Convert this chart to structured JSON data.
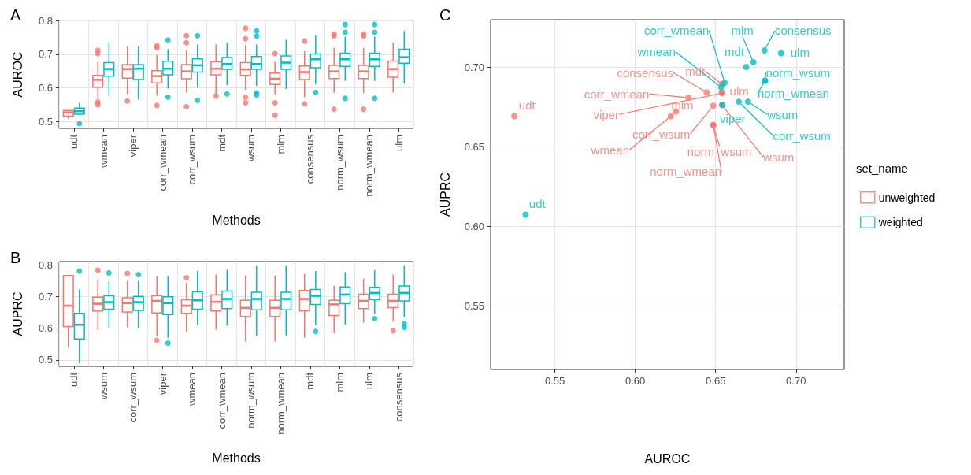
{
  "chart_data": [
    {
      "type": "box",
      "title": "A",
      "xlabel": "Methods",
      "ylabel": "AUROC",
      "categories": [
        "udt",
        "wmean",
        "viper",
        "corr_wmean",
        "corr_wsum",
        "mdt",
        "wsum",
        "mlm",
        "consensus",
        "norm_wsum",
        "norm_wmean",
        "ulm"
      ],
      "ylim": [
        0.48,
        0.8
      ],
      "yticks": [
        0.5,
        0.6,
        0.7,
        0.8
      ],
      "grid": true,
      "series": [
        {
          "color": "#f8766d",
          "boxes": [
            {
              "low": 0.508,
              "q1": 0.516,
              "median": 0.527,
              "q3": 0.533,
              "high": 0.535
            },
            {
              "low": 0.566,
              "q1": 0.602,
              "median": 0.624,
              "q3": 0.637,
              "high": 0.677,
              "outliers": [
                0.712,
                0.702,
                0.558,
                0.55
              ]
            },
            {
              "low": 0.582,
              "q1": 0.629,
              "median": 0.656,
              "q3": 0.669,
              "high": 0.723,
              "outliers": [
                0.561
              ]
            },
            {
              "low": 0.577,
              "q1": 0.615,
              "median": 0.635,
              "q3": 0.651,
              "high": 0.697,
              "outliers": [
                0.725,
                0.719,
                0.548
              ]
            },
            {
              "low": 0.586,
              "q1": 0.627,
              "median": 0.649,
              "q3": 0.669,
              "high": 0.711,
              "outliers": [
                0.755,
                0.734,
                0.545
              ]
            },
            {
              "low": 0.582,
              "q1": 0.639,
              "median": 0.657,
              "q3": 0.678,
              "high": 0.729,
              "outliers": [
                0.576
              ]
            },
            {
              "low": 0.594,
              "q1": 0.637,
              "median": 0.655,
              "q3": 0.675,
              "high": 0.726,
              "outliers": [
                0.777,
                0.746,
                0.572,
                0.556
              ]
            },
            {
              "low": 0.581,
              "q1": 0.61,
              "median": 0.627,
              "q3": 0.644,
              "high": 0.678,
              "outliers": [
                0.702,
                0.556,
                0.519
              ]
            },
            {
              "low": 0.573,
              "q1": 0.625,
              "median": 0.647,
              "q3": 0.665,
              "high": 0.709,
              "outliers": [
                0.739,
                0.553
              ]
            },
            {
              "low": 0.585,
              "q1": 0.628,
              "median": 0.649,
              "q3": 0.667,
              "high": 0.719,
              "outliers": [
                0.76,
                0.754,
                0.537
              ]
            },
            {
              "low": 0.585,
              "q1": 0.628,
              "median": 0.649,
              "q3": 0.667,
              "high": 0.719,
              "outliers": [
                0.76,
                0.754,
                0.537
              ]
            },
            {
              "low": 0.586,
              "q1": 0.632,
              "median": 0.656,
              "q3": 0.68,
              "high": 0.735
            }
          ]
        },
        {
          "color": "#00bfc4",
          "boxes": [
            {
              "low": 0.52,
              "q1": 0.522,
              "median": 0.531,
              "q3": 0.54,
              "high": 0.556,
              "outliers": [
                0.494
              ]
            },
            {
              "low": 0.577,
              "q1": 0.635,
              "median": 0.656,
              "q3": 0.675,
              "high": 0.733
            },
            {
              "low": 0.565,
              "q1": 0.625,
              "median": 0.657,
              "q3": 0.669,
              "high": 0.723
            },
            {
              "low": 0.598,
              "q1": 0.639,
              "median": 0.657,
              "q3": 0.679,
              "high": 0.715,
              "outliers": [
                0.742,
                0.573
              ]
            },
            {
              "low": 0.601,
              "q1": 0.647,
              "median": 0.667,
              "q3": 0.686,
              "high": 0.729,
              "outliers": [
                0.755,
                0.563
              ]
            },
            {
              "low": 0.608,
              "q1": 0.655,
              "median": 0.671,
              "q3": 0.69,
              "high": 0.734,
              "outliers": [
                0.582
              ]
            },
            {
              "low": 0.606,
              "q1": 0.655,
              "median": 0.671,
              "q3": 0.693,
              "high": 0.729,
              "outliers": [
                0.769,
                0.754,
                0.585,
                0.579
              ]
            },
            {
              "low": 0.597,
              "q1": 0.655,
              "median": 0.675,
              "q3": 0.695,
              "high": 0.743
            },
            {
              "low": 0.61,
              "q1": 0.66,
              "median": 0.685,
              "q3": 0.701,
              "high": 0.756,
              "outliers": [
                0.587
              ]
            },
            {
              "low": 0.621,
              "q1": 0.664,
              "median": 0.685,
              "q3": 0.703,
              "high": 0.752,
              "outliers": [
                0.788,
                0.765,
                0.569
              ]
            },
            {
              "low": 0.621,
              "q1": 0.664,
              "median": 0.685,
              "q3": 0.703,
              "high": 0.752,
              "outliers": [
                0.788,
                0.765,
                0.569
              ]
            },
            {
              "low": 0.613,
              "q1": 0.673,
              "median": 0.691,
              "q3": 0.715,
              "high": 0.769
            }
          ]
        }
      ]
    },
    {
      "type": "box",
      "title": "B",
      "xlabel": "Methods",
      "ylabel": "AUPRC",
      "categories": [
        "udt",
        "wsum",
        "corr_wsum",
        "viper",
        "wmean",
        "corr_wmean",
        "norm_wsum",
        "norm_wmean",
        "mdt",
        "mlm",
        "ulm",
        "consensus"
      ],
      "ylim": [
        0.48,
        0.81
      ],
      "yticks": [
        0.5,
        0.6,
        0.7,
        0.8
      ],
      "grid": true,
      "series": [
        {
          "color": "#f8766d",
          "boxes": [
            {
              "low": 0.54,
              "q1": 0.605,
              "median": 0.671,
              "q3": 0.766,
              "high": 0.766
            },
            {
              "low": 0.594,
              "q1": 0.654,
              "median": 0.677,
              "q3": 0.698,
              "high": 0.754,
              "outliers": [
                0.783
              ]
            },
            {
              "low": 0.603,
              "q1": 0.651,
              "median": 0.679,
              "q3": 0.696,
              "high": 0.749,
              "outliers": [
                0.773
              ]
            },
            {
              "low": 0.575,
              "q1": 0.648,
              "median": 0.686,
              "q3": 0.702,
              "high": 0.763,
              "outliers": [
                0.562
              ]
            },
            {
              "low": 0.587,
              "q1": 0.647,
              "median": 0.671,
              "q3": 0.69,
              "high": 0.743,
              "outliers": [
                0.759
              ]
            },
            {
              "low": 0.596,
              "q1": 0.654,
              "median": 0.683,
              "q3": 0.705,
              "high": 0.769
            },
            {
              "low": 0.558,
              "q1": 0.637,
              "median": 0.664,
              "q3": 0.688,
              "high": 0.766
            },
            {
              "low": 0.558,
              "q1": 0.637,
              "median": 0.664,
              "q3": 0.688,
              "high": 0.766
            },
            {
              "low": 0.57,
              "q1": 0.655,
              "median": 0.692,
              "q3": 0.719,
              "high": 0.771
            },
            {
              "low": 0.584,
              "q1": 0.64,
              "median": 0.675,
              "q3": 0.688,
              "high": 0.734
            },
            {
              "low": 0.618,
              "q1": 0.662,
              "median": 0.686,
              "q3": 0.707,
              "high": 0.756
            },
            {
              "low": 0.62,
              "q1": 0.665,
              "median": 0.686,
              "q3": 0.707,
              "high": 0.769,
              "outliers": [
                0.592
              ]
            }
          ]
        },
        {
          "color": "#00bfc4",
          "boxes": [
            {
              "low": 0.49,
              "q1": 0.566,
              "median": 0.611,
              "q3": 0.647,
              "high": 0.722,
              "outliers": [
                0.78
              ]
            },
            {
              "low": 0.601,
              "q1": 0.66,
              "median": 0.682,
              "q3": 0.702,
              "high": 0.746,
              "outliers": [
                0.774
              ]
            },
            {
              "low": 0.6,
              "q1": 0.656,
              "median": 0.682,
              "q3": 0.7,
              "high": 0.749,
              "outliers": [
                0.769
              ]
            },
            {
              "low": 0.57,
              "q1": 0.643,
              "median": 0.679,
              "q3": 0.699,
              "high": 0.763,
              "outliers": [
                0.553
              ]
            },
            {
              "low": 0.609,
              "q1": 0.66,
              "median": 0.688,
              "q3": 0.715,
              "high": 0.78
            },
            {
              "low": 0.609,
              "q1": 0.662,
              "median": 0.692,
              "q3": 0.717,
              "high": 0.784
            },
            {
              "low": 0.577,
              "q1": 0.658,
              "median": 0.692,
              "q3": 0.713,
              "high": 0.796
            },
            {
              "low": 0.577,
              "q1": 0.658,
              "median": 0.692,
              "q3": 0.713,
              "high": 0.796
            },
            {
              "low": 0.609,
              "q1": 0.675,
              "median": 0.702,
              "q3": 0.722,
              "high": 0.78,
              "outliers": [
                0.59
              ]
            },
            {
              "low": 0.611,
              "q1": 0.677,
              "median": 0.706,
              "q3": 0.73,
              "high": 0.777
            },
            {
              "low": 0.645,
              "q1": 0.69,
              "median": 0.711,
              "q3": 0.729,
              "high": 0.783,
              "outliers": [
                0.63
              ]
            },
            {
              "low": 0.634,
              "q1": 0.686,
              "median": 0.711,
              "q3": 0.733,
              "high": 0.796,
              "outliers": [
                0.614,
                0.603
              ]
            }
          ]
        }
      ]
    },
    {
      "type": "scatter",
      "title": "C",
      "xlabel": "AUROC",
      "ylabel": "AUPRC",
      "xlim": [
        0.51,
        0.73
      ],
      "ylim": [
        0.51,
        0.73
      ],
      "xticks": [
        {
          "value": 0.55,
          "label": "0.55"
        },
        {
          "value": 0.6,
          "label": "0.60"
        },
        {
          "value": 0.65,
          "label": "0.65"
        },
        {
          "value": 0.7,
          "label": "0.70"
        }
      ],
      "yticks": [
        {
          "value": 0.55,
          "label": "0.55"
        },
        {
          "value": 0.6,
          "label": "0.60"
        },
        {
          "value": 0.65,
          "label": "0.65"
        },
        {
          "value": 0.7,
          "label": "0.70"
        }
      ],
      "grid": true,
      "legend": "right",
      "legend_title": "set_name",
      "marker": "circle",
      "series": [
        {
          "name": "unweighted",
          "color": "#f8766d",
          "x": [
            0.5248,
            0.6221,
            0.6539,
            0.633,
            0.6485,
            0.6539,
            0.6539,
            0.6253,
            0.6444,
            0.6485,
            0.6485,
            0.6539
          ],
          "values": [
            0.6693,
            0.6693,
            0.6838,
            0.6809,
            0.6759,
            0.6896,
            0.6764,
            0.6723,
            0.6843,
            0.6637,
            0.6637,
            0.6843
          ],
          "value_labels": [
            "udt",
            "wmean",
            "viper",
            "corr_wmean",
            "corr_wsum",
            "mdt",
            "wsum",
            "mlm",
            "consensus",
            "norm_wsum",
            "norm_wmean",
            "ulm"
          ]
        },
        {
          "name": "weighted",
          "color": "#00bfc4",
          "x": [
            0.5317,
            0.6534,
            0.6542,
            0.6556,
            0.6644,
            0.669,
            0.6701,
            0.6735,
            0.6804,
            0.6807,
            0.6807,
            0.6907
          ],
          "values": [
            0.6074,
            0.6875,
            0.6764,
            0.6904,
            0.6784,
            0.7003,
            0.6784,
            0.7033,
            0.7107,
            0.6916,
            0.6916,
            0.7089
          ],
          "value_labels": [
            "udt",
            "wmean",
            "viper",
            "corr_wmean",
            "corr_wsum",
            "mdt",
            "wsum",
            "mlm",
            "consensus",
            "norm_wsum",
            "norm_wmean",
            "ulm"
          ]
        }
      ]
    }
  ]
}
